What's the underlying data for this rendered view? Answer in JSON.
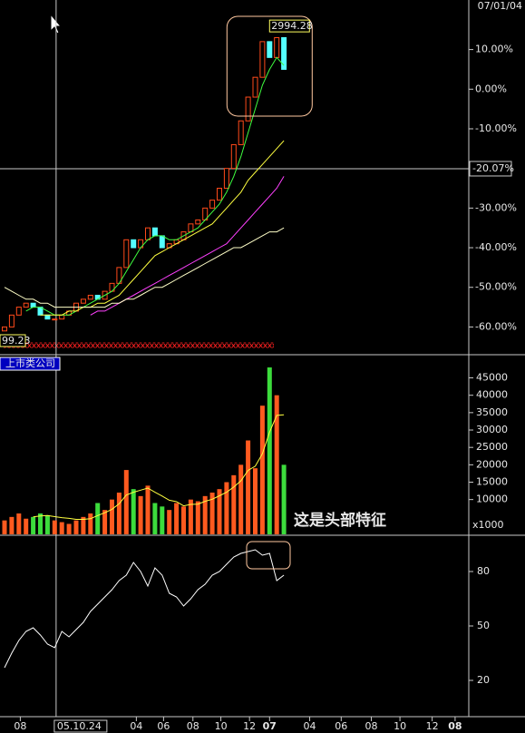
{
  "chart_data": [
    {
      "type": "candlestick",
      "corner_date": "07/01/04",
      "xlim": [
        -0.6,
        62
      ],
      "ylim": [
        -67,
        22.5
      ],
      "yticks": [
        {
          "value": 10,
          "label": "10.00%"
        },
        {
          "value": 0,
          "label": "0.00%"
        },
        {
          "value": -10,
          "label": "-10.00%"
        },
        {
          "value": -30,
          "label": "-30.00%"
        },
        {
          "value": -40,
          "label": "-40.00%"
        },
        {
          "value": -50,
          "label": "-50.00%"
        },
        {
          "value": -60,
          "label": "-60.00%"
        }
      ],
      "up_color": "#ff4a1a",
      "down_color": "#54ffff",
      "open": [
        -61,
        -60,
        -57,
        -55,
        -54,
        -55,
        -57,
        -58,
        -58,
        -57,
        -56,
        -54,
        -53,
        -52,
        -53,
        -51,
        -49,
        -45,
        -38,
        -40,
        -38,
        -35,
        -37,
        -40,
        -39,
        -38,
        -36,
        -34,
        -33,
        -30,
        -28,
        -25,
        -20,
        -14,
        -8,
        -2,
        3,
        12,
        8,
        13
      ],
      "close": [
        -60,
        -57,
        -55,
        -54,
        -55,
        -57,
        -58,
        -58,
        -57,
        -56,
        -54,
        -53,
        -52,
        -53,
        -51,
        -49,
        -45,
        -38,
        -40,
        -38,
        -35,
        -37,
        -40,
        -39,
        -38,
        -36,
        -34,
        -33,
        -30,
        -28,
        -25,
        -20,
        -14,
        -8,
        -2,
        3,
        12,
        8,
        13,
        5
      ],
      "series": [
        {
          "name": "MA1",
          "color": "#40ff40",
          "values": [
            null,
            null,
            null,
            -56,
            -55,
            -55,
            -56,
            -57,
            -57,
            -57,
            -56,
            -55,
            -54,
            -53,
            -52,
            -51,
            -49,
            -46,
            -43,
            -40,
            -38,
            -37,
            -37,
            -38,
            -38,
            -37,
            -36,
            -35,
            -33,
            -31,
            -29,
            -26,
            -22,
            -17,
            -11,
            -5,
            1,
            5,
            8,
            6
          ]
        },
        {
          "name": "MA2",
          "color": "#ffff40",
          "values": [
            null,
            null,
            null,
            null,
            null,
            -57,
            -57,
            -57,
            -57,
            -56,
            -56,
            -55,
            -55,
            -54,
            -54,
            -53,
            -52,
            -50,
            -48,
            -46,
            -44,
            -42,
            -41,
            -40,
            -39,
            -38,
            -37,
            -36,
            -35,
            -34,
            -32,
            -30,
            -28,
            -26,
            -23,
            -21,
            -19,
            -17,
            -15,
            -13
          ]
        },
        {
          "name": "MA3",
          "color": "#ff40ff",
          "values": [
            null,
            null,
            null,
            null,
            null,
            null,
            null,
            null,
            null,
            null,
            null,
            null,
            -57,
            -56,
            -56,
            -55,
            -54,
            -53,
            -52,
            -51,
            -50,
            -49,
            -48,
            -47,
            -46,
            -45,
            -44,
            -43,
            -42,
            -41,
            -40,
            -39,
            -37,
            -35,
            -33,
            -31,
            -29,
            -27,
            -25,
            -22
          ]
        },
        {
          "name": "MA4",
          "color": "#ffffc8",
          "values": [
            -50,
            -51,
            -52,
            -53,
            -53,
            -54,
            -54,
            -55,
            -55,
            -55,
            -55,
            -55,
            -55,
            -55,
            -55,
            -54,
            -54,
            -53,
            -53,
            -52,
            -51,
            -50,
            -50,
            -49,
            -48,
            -47,
            -46,
            -45,
            -44,
            -43,
            -42,
            -41,
            -40,
            -40,
            -39,
            -38,
            -37,
            -36,
            -36,
            -35
          ]
        }
      ],
      "high_label": {
        "x": 37,
        "value": 14,
        "label": "2994.28"
      },
      "low_label": "99.23",
      "crosshair": {
        "x": {
          "value": 7.2,
          "label": "05.10.24"
        },
        "y": {
          "value": -20.07,
          "label": "-20.07%"
        }
      },
      "xticks": [
        {
          "value": 2.2,
          "label": "08"
        },
        {
          "value": 18.4,
          "label": "04"
        },
        {
          "value": 22.2,
          "label": "06"
        },
        {
          "value": 26.3,
          "label": "08"
        },
        {
          "value": 30.2,
          "label": "10"
        },
        {
          "value": 34.2,
          "label": "12"
        },
        {
          "value": 37,
          "label": "07"
        },
        {
          "value": 42.6,
          "label": "04"
        },
        {
          "value": 47,
          "label": "06"
        },
        {
          "value": 51.2,
          "label": "08"
        },
        {
          "value": 55.2,
          "label": "10"
        },
        {
          "value": 59.7,
          "label": "12"
        },
        {
          "value": 62.9,
          "label": "08"
        }
      ],
      "highlighted_ticks": [
        6,
        12
      ]
    },
    {
      "type": "volume",
      "legend_text": "上市类公司",
      "annotation": "这是头部特征",
      "unit_label": "x1000",
      "ylim": [
        0,
        51400
      ],
      "yticks": [
        10000,
        15000,
        20000,
        25000,
        30000,
        35000,
        40000,
        45000
      ],
      "up_color": "#ff5a1f",
      "down_color": "#3cdc3c",
      "values": [
        4000,
        5000,
        6000,
        4500,
        5000,
        6000,
        5500,
        4000,
        3500,
        3000,
        4000,
        5000,
        6000,
        9000,
        7000,
        10000,
        12000,
        18500,
        13000,
        11000,
        14000,
        9000,
        8000,
        7000,
        9000,
        8000,
        10000,
        9500,
        11000,
        12000,
        13000,
        15000,
        17000,
        20000,
        27000,
        19000,
        37000,
        48000,
        40000,
        20000
      ],
      "series": [
        {
          "name": "VMA",
          "color": "#ffff40",
          "values": [
            null,
            null,
            null,
            null,
            5000,
            5300,
            5400,
            5100,
            4800,
            4600,
            4300,
            4300,
            4500,
            5400,
            6200,
            7200,
            8800,
            11300,
            12100,
            12700,
            13300,
            12100,
            11000,
            9800,
            9400,
            8200,
            8600,
            8700,
            9500,
            10100,
            11100,
            12100,
            13600,
            15400,
            18400,
            19600,
            23200,
            29400,
            34200,
            34400
          ]
        }
      ]
    },
    {
      "type": "line",
      "ylim": [
        0,
        99
      ],
      "yticks": [
        20,
        50,
        80
      ],
      "color": "#ffffff",
      "values": [
        27,
        35,
        42,
        47,
        49,
        45,
        40,
        38,
        47,
        44,
        48,
        52,
        58,
        62,
        66,
        70,
        75,
        78,
        85,
        80,
        72,
        82,
        78,
        68,
        66,
        61,
        65,
        70,
        73,
        78,
        80,
        84,
        88,
        90,
        91,
        92,
        89,
        90,
        75,
        78
      ]
    }
  ]
}
